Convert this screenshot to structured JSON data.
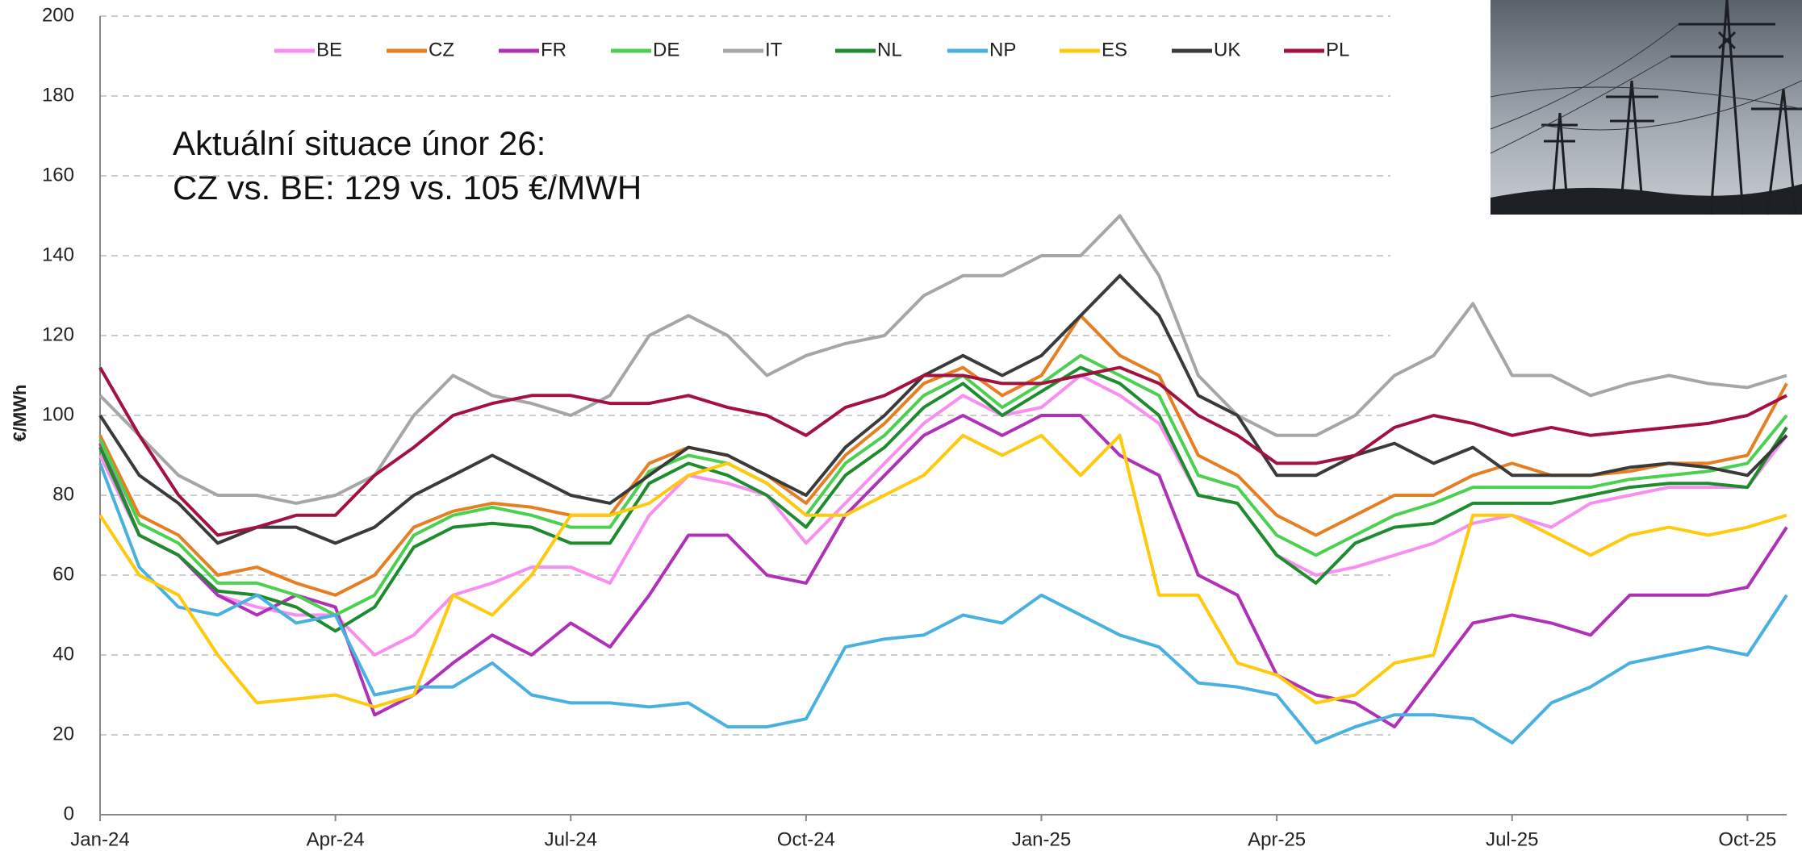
{
  "chart_data": {
    "type": "line",
    "ylabel": "€/MWh",
    "annotations": [
      "Aktuální situace únor 26:",
      "CZ vs. BE: 129 vs. 105 €/MWH"
    ],
    "categories": [
      "Jan-24",
      null,
      null,
      null,
      null,
      null,
      "Apr-24",
      null,
      null,
      null,
      null,
      null,
      "Jul-24",
      null,
      null,
      null,
      null,
      null,
      "Oct-24",
      null,
      null,
      null,
      null,
      null,
      "Jan-25",
      null,
      null,
      null,
      null,
      null,
      "Apr-25",
      null,
      null,
      null,
      null,
      null,
      "Jul-25",
      null,
      null,
      null,
      null,
      null,
      "Oct-25",
      null
    ],
    "ylim": [
      0,
      200
    ],
    "yticks": [
      0,
      20,
      40,
      60,
      80,
      100,
      120,
      140,
      160,
      180,
      200
    ],
    "grid": true,
    "legend_position": "top",
    "series": [
      {
        "name": "BE",
        "color": "#f78ef0",
        "values": [
          90,
          70,
          65,
          55,
          52,
          50,
          50,
          40,
          45,
          55,
          58,
          62,
          62,
          58,
          75,
          85,
          83,
          80,
          68,
          78,
          88,
          98,
          105,
          100,
          102,
          110,
          105,
          98,
          80,
          78,
          65,
          60,
          62,
          65,
          68,
          73,
          75,
          72,
          78,
          80,
          82,
          82,
          82,
          95
        ]
      },
      {
        "name": "CZ",
        "color": "#e67e22",
        "values": [
          95,
          75,
          70,
          60,
          62,
          58,
          55,
          60,
          72,
          76,
          78,
          77,
          75,
          75,
          88,
          92,
          90,
          85,
          78,
          90,
          98,
          108,
          112,
          105,
          110,
          125,
          115,
          110,
          90,
          85,
          75,
          70,
          75,
          80,
          80,
          85,
          88,
          85,
          85,
          86,
          88,
          88,
          90,
          108
        ]
      },
      {
        "name": "FR",
        "color": "#b030b8",
        "values": [
          93,
          70,
          65,
          55,
          50,
          55,
          52,
          25,
          30,
          38,
          45,
          40,
          48,
          42,
          55,
          70,
          70,
          60,
          58,
          75,
          85,
          95,
          100,
          95,
          100,
          100,
          90,
          85,
          60,
          55,
          35,
          30,
          28,
          22,
          35,
          48,
          50,
          48,
          45,
          55,
          55,
          55,
          57,
          72
        ]
      },
      {
        "name": "DE",
        "color": "#4cd050",
        "values": [
          94,
          73,
          68,
          58,
          58,
          55,
          50,
          55,
          70,
          75,
          77,
          75,
          72,
          72,
          86,
          90,
          88,
          83,
          75,
          88,
          95,
          105,
          110,
          102,
          108,
          115,
          110,
          105,
          85,
          82,
          70,
          65,
          70,
          75,
          78,
          82,
          82,
          82,
          82,
          84,
          85,
          86,
          88,
          100
        ]
      },
      {
        "name": "IT",
        "color": "#a6a6a6",
        "values": [
          105,
          95,
          85,
          80,
          80,
          78,
          80,
          85,
          100,
          110,
          105,
          103,
          100,
          105,
          120,
          125,
          120,
          110,
          115,
          118,
          120,
          130,
          135,
          135,
          140,
          140,
          150,
          135,
          110,
          100,
          95,
          95,
          100,
          110,
          115,
          128,
          110,
          110,
          105,
          108,
          110,
          108,
          107,
          110
        ]
      },
      {
        "name": "NL",
        "color": "#1e8c2e",
        "values": [
          92,
          70,
          65,
          56,
          55,
          52,
          46,
          52,
          67,
          72,
          73,
          72,
          68,
          68,
          83,
          88,
          85,
          80,
          72,
          85,
          92,
          102,
          108,
          100,
          106,
          112,
          108,
          100,
          80,
          78,
          65,
          58,
          68,
          72,
          73,
          78,
          78,
          78,
          80,
          82,
          83,
          83,
          82,
          97
        ]
      },
      {
        "name": "NP",
        "color": "#4ab0e0",
        "values": [
          88,
          62,
          52,
          50,
          55,
          48,
          50,
          30,
          32,
          32,
          38,
          30,
          28,
          28,
          27,
          28,
          22,
          22,
          24,
          42,
          44,
          45,
          50,
          48,
          55,
          50,
          45,
          42,
          33,
          32,
          30,
          18,
          22,
          25,
          25,
          24,
          18,
          28,
          32,
          38,
          40,
          42,
          40,
          55
        ]
      },
      {
        "name": "ES",
        "color": "#ffc90e",
        "values": [
          75,
          60,
          55,
          40,
          28,
          29,
          30,
          27,
          30,
          55,
          50,
          60,
          75,
          75,
          78,
          85,
          88,
          83,
          75,
          75,
          80,
          85,
          95,
          90,
          95,
          85,
          95,
          55,
          55,
          38,
          35,
          28,
          30,
          38,
          40,
          75,
          75,
          70,
          65,
          70,
          72,
          70,
          72,
          75
        ]
      },
      {
        "name": "UK",
        "color": "#3a3a3a",
        "values": [
          100,
          85,
          78,
          68,
          72,
          72,
          68,
          72,
          80,
          85,
          90,
          85,
          80,
          78,
          85,
          92,
          90,
          85,
          80,
          92,
          100,
          110,
          115,
          110,
          115,
          125,
          135,
          125,
          105,
          100,
          85,
          85,
          90,
          93,
          88,
          92,
          85,
          85,
          85,
          87,
          88,
          87,
          85,
          95
        ]
      },
      {
        "name": "PL",
        "color": "#a3123f",
        "values": [
          112,
          95,
          80,
          70,
          72,
          75,
          75,
          85,
          92,
          100,
          103,
          105,
          105,
          103,
          103,
          105,
          102,
          100,
          95,
          102,
          105,
          110,
          110,
          108,
          108,
          110,
          112,
          108,
          100,
          95,
          88,
          88,
          90,
          97,
          100,
          98,
          95,
          97,
          95,
          96,
          97,
          98,
          100,
          105
        ]
      }
    ]
  }
}
